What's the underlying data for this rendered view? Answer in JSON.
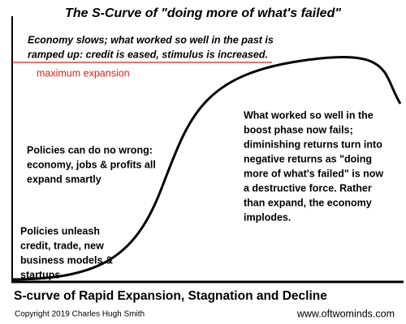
{
  "title": "The S-Curve of \"doing more of what's failed\"",
  "annotations": [
    {
      "lines": [
        "Economy slows; what worked so well in the past is",
        "ramped up: credit is eased, stimulus is increased."
      ]
    },
    {
      "lines": [
        "Policies can do no wrong:",
        "economy, jobs & profits all",
        "expand smartly"
      ]
    },
    {
      "lines": [
        "Policies unleash",
        "credit, trade,  new",
        "business models &",
        "startups"
      ]
    },
    {
      "lines": [
        "What worked so well in the",
        "boost phase now fails;",
        "diminishing returns turn into",
        "negative returns as \"doing",
        "more of what's failed\" is now",
        "a destructive force. Rather",
        "than expand, the economy",
        "implodes."
      ]
    }
  ],
  "line_label": "maximum expansion",
  "caption": "S-curve of Rapid Expansion, Stagnation and Decline",
  "footer": {
    "copyright": "Copyright 2019 Charles Hugh Smith",
    "url": "www.oftwominds.com"
  }
}
